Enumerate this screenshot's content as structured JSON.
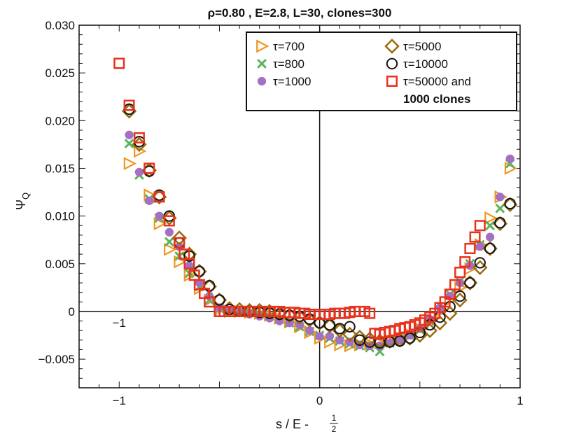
{
  "chart_data": {
    "type": "scatter",
    "title": "ρ=0.80 , E=2.8, L=30, clones=300",
    "ylabel_main": "Ψ",
    "ylabel_sub": "Q",
    "xlabel_main": "s / E - ",
    "xlabel_frac_num": "1",
    "xlabel_frac_den": "2",
    "xlim": [
      -1.2,
      1.0
    ],
    "ylim": [
      -0.008,
      0.03
    ],
    "x_ticks": [
      -1,
      0,
      1
    ],
    "x_tick_labels": [
      "−1",
      "0",
      "1"
    ],
    "inner_x_tick_labels": [
      "−1"
    ],
    "y_ticks": [
      -0.005,
      0,
      0.005,
      0.01,
      0.015,
      0.02,
      0.025,
      0.03
    ],
    "y_tick_labels": [
      "−0.005",
      "0",
      "0.005",
      "0.010",
      "0.015",
      "0.020",
      "0.025",
      "0.030"
    ],
    "legend_position": "top-right",
    "legend_extra_line": "1000 clones",
    "series": [
      {
        "name": "τ=700",
        "marker": "triangle-right",
        "color": "#f0961e",
        "x": [
          -0.95,
          -0.9,
          -0.85,
          -0.8,
          -0.75,
          -0.7,
          -0.65,
          -0.6,
          -0.55,
          -0.5,
          -0.45,
          -0.4,
          -0.35,
          -0.3,
          -0.25,
          -0.2,
          -0.15,
          -0.1,
          -0.05,
          0.0,
          0.05,
          0.1,
          0.15,
          0.2,
          0.25,
          0.3,
          0.35,
          0.4,
          0.45,
          0.5,
          0.55,
          0.6,
          0.65,
          0.7,
          0.75,
          0.8,
          0.85,
          0.9,
          0.95
        ],
        "y": [
          0.0155,
          0.0168,
          0.0122,
          0.0092,
          0.0065,
          0.0052,
          0.0038,
          0.0024,
          0.0012,
          0.0002,
          0.0,
          0.0,
          -0.0001,
          -0.0002,
          -0.0004,
          -0.0007,
          -0.0011,
          -0.0016,
          -0.0022,
          -0.0028,
          -0.0032,
          -0.0035,
          -0.0036,
          -0.0035,
          -0.0034,
          -0.0033,
          -0.0031,
          -0.0028,
          -0.0024,
          -0.0018,
          -0.001,
          0.0,
          0.0012,
          0.0025,
          0.0045,
          0.007,
          0.0098,
          0.012,
          0.015
        ]
      },
      {
        "name": "τ=800",
        "marker": "x",
        "color": "#5ab45a",
        "x": [
          -0.95,
          -0.9,
          -0.85,
          -0.8,
          -0.75,
          -0.7,
          -0.65,
          -0.6,
          -0.55,
          -0.5,
          -0.45,
          -0.4,
          -0.35,
          -0.3,
          -0.25,
          -0.2,
          -0.15,
          -0.1,
          -0.05,
          0.0,
          0.05,
          0.1,
          0.15,
          0.2,
          0.25,
          0.3,
          0.35,
          0.4,
          0.45,
          0.5,
          0.55,
          0.6,
          0.65,
          0.7,
          0.75,
          0.8,
          0.85,
          0.9,
          0.95
        ],
        "y": [
          0.0176,
          0.0143,
          0.0118,
          0.0098,
          0.0073,
          0.0058,
          0.004,
          0.0026,
          0.0012,
          0.0003,
          0.0001,
          0.0,
          -0.0001,
          -0.0003,
          -0.0005,
          -0.0008,
          -0.0012,
          -0.0016,
          -0.0021,
          -0.0025,
          -0.0028,
          -0.0031,
          -0.0034,
          -0.0036,
          -0.0038,
          -0.0042,
          -0.0033,
          -0.0029,
          -0.0025,
          -0.0019,
          -0.001,
          0.0001,
          0.0018,
          0.0032,
          0.005,
          0.007,
          0.009,
          0.0108,
          0.0155
        ]
      },
      {
        "name": "τ=1000",
        "marker": "dot",
        "color": "#a370c4",
        "x": [
          -0.95,
          -0.9,
          -0.85,
          -0.8,
          -0.75,
          -0.7,
          -0.65,
          -0.6,
          -0.55,
          -0.5,
          -0.45,
          -0.4,
          -0.35,
          -0.3,
          -0.25,
          -0.2,
          -0.15,
          -0.1,
          -0.05,
          0.0,
          0.05,
          0.1,
          0.15,
          0.2,
          0.25,
          0.3,
          0.35,
          0.4,
          0.45,
          0.5,
          0.55,
          0.6,
          0.65,
          0.7,
          0.75,
          0.8,
          0.85,
          0.9,
          0.95
        ],
        "y": [
          0.0185,
          0.0146,
          0.0116,
          0.01,
          0.0083,
          0.0068,
          0.0048,
          0.003,
          0.0016,
          0.0004,
          0.0001,
          -0.0001,
          -0.0003,
          -0.0005,
          -0.0007,
          -0.001,
          -0.0012,
          -0.0014,
          -0.002,
          -0.0026,
          -0.0026,
          -0.003,
          -0.0032,
          -0.0035,
          -0.0036,
          -0.0036,
          -0.0033,
          -0.003,
          -0.0025,
          -0.0018,
          -0.0008,
          0.0004,
          0.0016,
          0.003,
          0.0048,
          0.0068,
          0.0078,
          0.012,
          0.016
        ]
      },
      {
        "name": "τ=5000",
        "marker": "diamond",
        "color": "#9c6a0c",
        "x": [
          -0.95,
          -0.9,
          -0.85,
          -0.8,
          -0.75,
          -0.7,
          -0.65,
          -0.6,
          -0.55,
          -0.5,
          -0.45,
          -0.4,
          -0.35,
          -0.3,
          -0.25,
          -0.2,
          -0.15,
          -0.1,
          -0.05,
          0.0,
          0.05,
          0.1,
          0.15,
          0.2,
          0.25,
          0.3,
          0.35,
          0.4,
          0.45,
          0.5,
          0.55,
          0.6,
          0.65,
          0.7,
          0.75,
          0.8,
          0.85,
          0.9,
          0.95
        ],
        "y": [
          0.021,
          0.0175,
          0.0148,
          0.012,
          0.0098,
          0.0077,
          0.006,
          0.0042,
          0.0026,
          0.0012,
          0.0003,
          0.0002,
          0.0001,
          0.0001,
          0.0,
          -0.0002,
          -0.0004,
          -0.0006,
          -0.0009,
          -0.0012,
          -0.0015,
          -0.002,
          -0.0024,
          -0.0027,
          -0.0029,
          -0.0031,
          -0.0031,
          -0.003,
          -0.0028,
          -0.0025,
          -0.002,
          -0.0012,
          -0.0002,
          0.0012,
          0.003,
          0.0046,
          0.0066,
          0.0092,
          0.0112
        ]
      },
      {
        "name": "τ=10000",
        "marker": "circle",
        "color": "#141414",
        "x": [
          -0.95,
          -0.9,
          -0.85,
          -0.8,
          -0.75,
          -0.7,
          -0.65,
          -0.6,
          -0.55,
          -0.5,
          -0.45,
          -0.4,
          -0.35,
          -0.3,
          -0.25,
          -0.2,
          -0.15,
          -0.1,
          -0.05,
          0.0,
          0.05,
          0.1,
          0.15,
          0.2,
          0.25,
          0.3,
          0.35,
          0.4,
          0.45,
          0.5,
          0.55,
          0.6,
          0.65,
          0.7,
          0.75,
          0.8,
          0.85,
          0.9,
          0.95
        ],
        "y": [
          0.0212,
          0.0178,
          0.0147,
          0.0122,
          0.01,
          0.0072,
          0.0058,
          0.0042,
          0.0027,
          0.0012,
          0.0002,
          0.0,
          0.0,
          -0.0001,
          -0.0002,
          -0.0003,
          -0.0004,
          -0.0005,
          -0.0008,
          -0.0012,
          -0.0014,
          -0.0018,
          -0.0016,
          -0.003,
          -0.0032,
          -0.0033,
          -0.0032,
          -0.0031,
          -0.0028,
          -0.0022,
          -0.0014,
          -0.0006,
          0.0005,
          0.0016,
          0.003,
          0.0051,
          0.0066,
          0.0093,
          0.0113
        ]
      },
      {
        "name": "τ=50000 and",
        "marker": "square",
        "color": "#e8321e",
        "x": [
          -1.0,
          -0.95,
          -0.9,
          -0.85,
          -0.8,
          -0.75,
          -0.7,
          -0.675,
          -0.65,
          -0.625,
          -0.6,
          -0.575,
          -0.55,
          -0.5,
          -0.475,
          -0.45,
          -0.425,
          -0.4,
          -0.375,
          -0.35,
          -0.325,
          -0.3,
          -0.275,
          -0.25,
          -0.225,
          -0.2,
          -0.175,
          -0.15,
          -0.125,
          -0.1,
          -0.075,
          -0.05,
          -0.025,
          0.0,
          0.025,
          0.05,
          0.075,
          0.1,
          0.125,
          0.15,
          0.175,
          0.2,
          0.225,
          0.25,
          0.275,
          0.3,
          0.325,
          0.35,
          0.375,
          0.4,
          0.425,
          0.45,
          0.475,
          0.5,
          0.525,
          0.55,
          0.575,
          0.6,
          0.625,
          0.65,
          0.675,
          0.7,
          0.725,
          0.75,
          0.775,
          0.8
        ],
        "y": [
          0.026,
          0.0216,
          0.0182,
          0.015,
          0.012,
          0.0095,
          0.0072,
          0.006,
          0.005,
          0.0038,
          0.0028,
          0.0019,
          0.001,
          0.0,
          0.0,
          0.0,
          0.0,
          0.0,
          0.0,
          0.0,
          0.0,
          0.0,
          0.0,
          0.0,
          0.0,
          0.0,
          -0.0001,
          -0.0001,
          -0.0001,
          -0.0002,
          -0.0002,
          -0.0003,
          -0.0003,
          -0.0003,
          -0.0003,
          -0.0003,
          -0.0002,
          -0.0002,
          -0.0002,
          -0.0001,
          0.0,
          0.0,
          0.0,
          -0.0002,
          -0.0023,
          -0.0024,
          -0.0022,
          -0.0021,
          -0.002,
          -0.0018,
          -0.0017,
          -0.0016,
          -0.0014,
          -0.0012,
          -0.0009,
          -0.0006,
          -0.0002,
          0.0004,
          0.001,
          0.0018,
          0.0028,
          0.0041,
          0.0052,
          0.0066,
          0.0078,
          0.009
        ]
      }
    ]
  }
}
